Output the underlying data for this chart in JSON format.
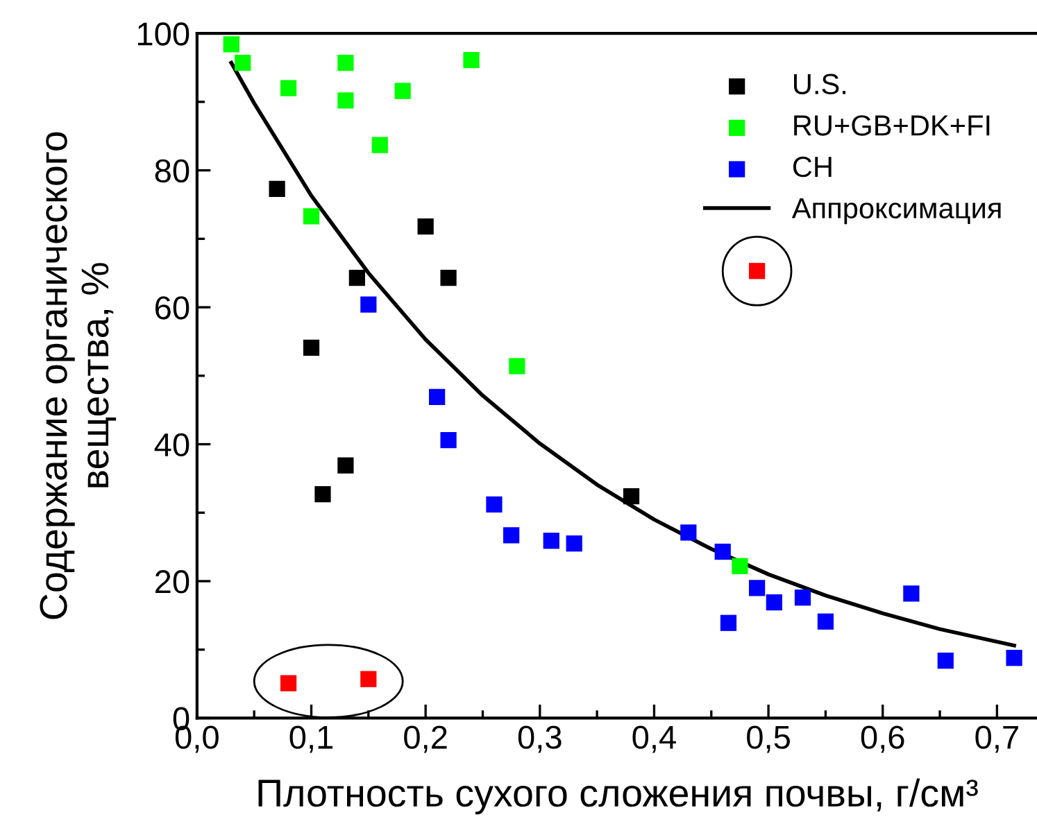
{
  "chart_data": {
    "type": "scatter",
    "xlabel": "Плотность сухого сложения почвы, г/см³",
    "ylabel": "Содержание органического\nвещества, %",
    "xlim": [
      0,
      0.735
    ],
    "ylim": [
      0,
      100
    ],
    "xticks": [
      {
        "value": 0,
        "label": "0,0"
      },
      {
        "value": 0.05,
        "label": null
      },
      {
        "value": 0.1,
        "label": "0,1"
      },
      {
        "value": 0.15,
        "label": null
      },
      {
        "value": 0.2,
        "label": "0,2"
      },
      {
        "value": 0.25,
        "label": null
      },
      {
        "value": 0.3,
        "label": "0,3"
      },
      {
        "value": 0.35,
        "label": null
      },
      {
        "value": 0.4,
        "label": "0,4"
      },
      {
        "value": 0.45,
        "label": null
      },
      {
        "value": 0.5,
        "label": "0,5"
      },
      {
        "value": 0.55,
        "label": null
      },
      {
        "value": 0.6,
        "label": "0,6"
      },
      {
        "value": 0.65,
        "label": null
      },
      {
        "value": 0.7,
        "label": "0,7"
      }
    ],
    "yticks": [
      0,
      {
        "value": 10,
        "label": null
      },
      20,
      {
        "value": 30,
        "label": null
      },
      40,
      {
        "value": 50,
        "label": null
      },
      60,
      {
        "value": 70,
        "label": null
      },
      80,
      {
        "value": 90,
        "label": null
      },
      100
    ],
    "marker": "square",
    "grid": false,
    "legend": "top right",
    "series": [
      {
        "name": "U.S.",
        "color": "#000000",
        "x": [
          0.07,
          0.1,
          0.11,
          0.13,
          0.14,
          0.2,
          0.22,
          0.38
        ],
        "values": [
          77.3,
          54.1,
          32.7,
          36.9,
          64.3,
          71.8,
          64.3,
          32.4
        ]
      },
      {
        "name": "RU+GB+DK+FI",
        "color": "#00ff00",
        "x": [
          0.03,
          0.04,
          0.08,
          0.13,
          0.13,
          0.18,
          0.16,
          0.1,
          0.24,
          0.28,
          0.475
        ],
        "values": [
          98.4,
          95.7,
          92.0,
          95.7,
          90.2,
          91.6,
          83.7,
          73.3,
          96.1,
          51.4,
          22.2
        ]
      },
      {
        "name": "CH",
        "color": "#0000ff",
        "x": [
          0.15,
          0.21,
          0.22,
          0.26,
          0.275,
          0.31,
          0.33,
          0.43,
          0.46,
          0.465,
          0.49,
          0.505,
          0.53,
          0.55,
          0.625,
          0.655,
          0.715
        ],
        "values": [
          60.4,
          46.9,
          40.6,
          31.2,
          26.7,
          25.9,
          25.5,
          27.1,
          24.3,
          13.9,
          19.0,
          16.9,
          17.6,
          14.1,
          18.2,
          8.4,
          8.8
        ]
      },
      {
        "color": "#ff0000",
        "x": [
          0.08,
          0.15,
          0.49
        ],
        "values": [
          5.1,
          5.7,
          65.3
        ]
      },
      {
        "name": "Аппроксимация",
        "type": "line",
        "marker": "none",
        "line_style": "solid",
        "color": "#000000",
        "x": [
          0.03,
          0.05,
          0.1,
          0.15,
          0.2,
          0.25,
          0.3,
          0.35,
          0.4,
          0.45,
          0.5,
          0.55,
          0.6,
          0.65,
          0.715
        ],
        "values": [
          95.7,
          89.8,
          76.3,
          65.0,
          55.3,
          47.1,
          40.1,
          34.1,
          29.0,
          24.7,
          21.0,
          17.9,
          15.3,
          13.0,
          10.6
        ]
      }
    ]
  }
}
